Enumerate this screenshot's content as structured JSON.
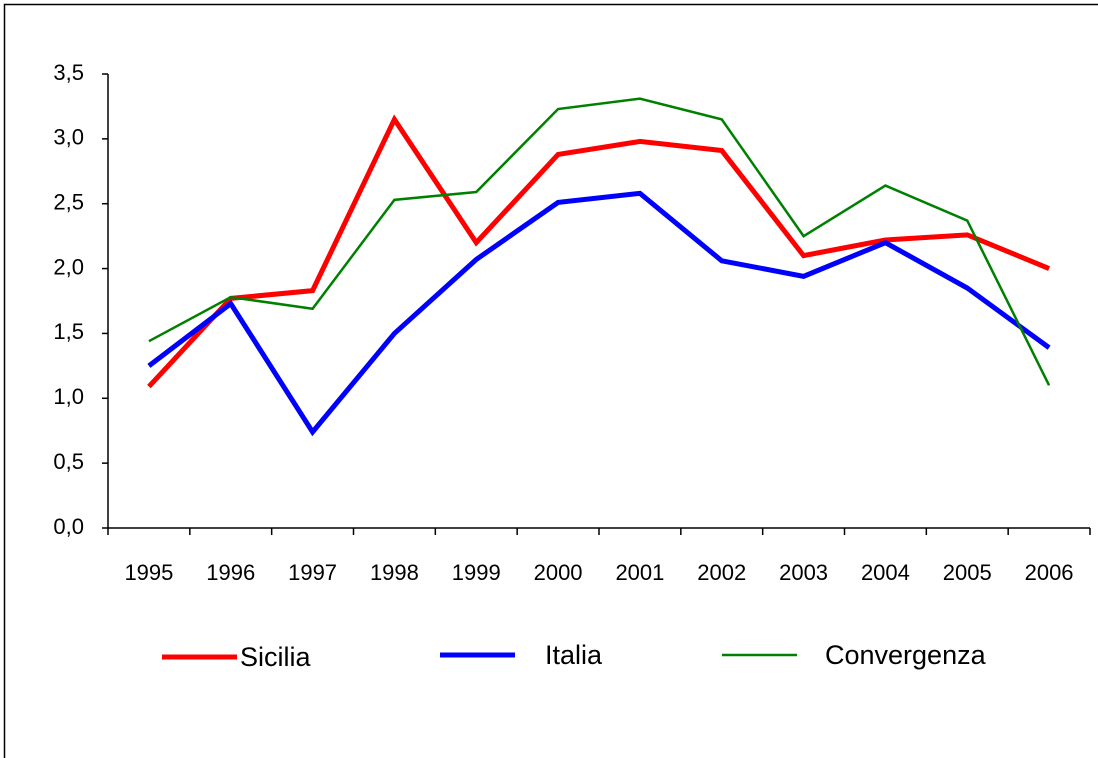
{
  "chart_data": {
    "type": "line",
    "categories": [
      "1995",
      "1996",
      "1997",
      "1998",
      "1999",
      "2000",
      "2001",
      "2002",
      "2003",
      "2004",
      "2005",
      "2006"
    ],
    "series": [
      {
        "name": "Sicilia",
        "color": "#ff0000",
        "values": [
          1.09,
          1.77,
          1.83,
          3.15,
          2.2,
          2.88,
          2.98,
          2.91,
          2.1,
          2.22,
          2.26,
          2.0
        ]
      },
      {
        "name": "Italia",
        "color": "#0000ff",
        "values": [
          1.25,
          1.73,
          0.74,
          1.5,
          2.07,
          2.51,
          2.58,
          2.06,
          1.94,
          2.2,
          1.85,
          1.39
        ]
      },
      {
        "name": "Convergenza",
        "color": "#008000",
        "values": [
          1.44,
          1.78,
          1.69,
          2.53,
          2.59,
          3.23,
          3.31,
          3.15,
          2.25,
          2.64,
          2.37,
          1.1
        ]
      }
    ],
    "ylim": [
      0,
      3.5
    ],
    "yticks": [
      {
        "value": 0,
        "label": "0,0"
      },
      {
        "value": 0.5,
        "label": "0,5"
      },
      {
        "value": 1,
        "label": "1,0"
      },
      {
        "value": 1.5,
        "label": "1,5"
      },
      {
        "value": 2,
        "label": "2,0"
      },
      {
        "value": 2.5,
        "label": "2,5"
      },
      {
        "value": 3,
        "label": "3,0"
      },
      {
        "value": 3.5,
        "label": "3,5"
      }
    ],
    "grid": false,
    "legend": "bottom"
  }
}
